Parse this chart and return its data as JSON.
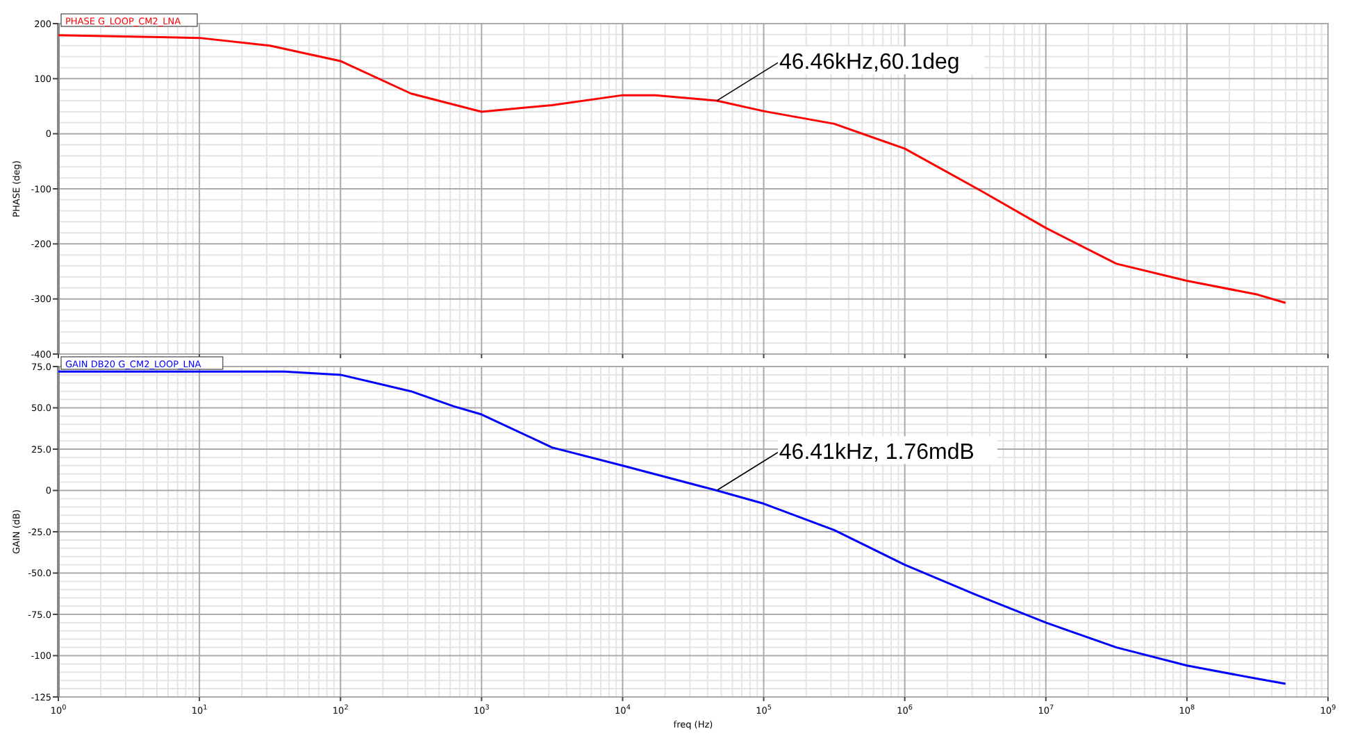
{
  "chart_data": [
    {
      "type": "line",
      "ylabel": "PHASE (deg)",
      "log": "x",
      "grid": true,
      "legend": "top left",
      "tick_labels": "y",
      "xlim": [
        1,
        1000000000
      ],
      "xticks": [
        {
          "value": 1,
          "label": null
        },
        {
          "value": 10,
          "label": null
        },
        {
          "value": 100,
          "label": null
        },
        {
          "value": 1000,
          "label": null
        },
        {
          "value": 10000,
          "label": null
        },
        {
          "value": 100000,
          "label": null
        },
        {
          "value": 1000000,
          "label": null
        },
        {
          "value": 10000000,
          "label": null
        },
        {
          "value": 100000000,
          "label": null
        },
        {
          "value": 1000000000,
          "label": null
        }
      ],
      "ylim": [
        -400,
        200
      ],
      "yticks": [
        -400,
        -300,
        -200,
        -100,
        0,
        100,
        200
      ],
      "series": [
        {
          "name": "PHASE G_LOOP_CM2_LNA",
          "color": "#ff0000",
          "x": [
            1,
            10,
            31.6,
            100,
            316,
            1000,
            3162,
            10000,
            17000,
            46460,
            100000,
            316228,
            1000000,
            3550000,
            10000000,
            31600000,
            100000000,
            316000000,
            500000000
          ],
          "values": [
            179,
            174,
            160,
            132,
            73,
            40,
            52,
            70,
            70,
            60,
            41,
            18,
            -27,
            -105,
            -171,
            -236,
            -267,
            -292,
            -307
          ]
        }
      ],
      "annotations": [
        {
          "text": "46.46kHz,60.1deg",
          "x": 46460,
          "y": 60
        }
      ]
    },
    {
      "type": "line",
      "xlabel": "freq (Hz)",
      "ylabel": "GAIN (dB)",
      "log": "x",
      "grid": true,
      "legend": "top left",
      "xlim": [
        1,
        1000000000
      ],
      "xticks": [
        {
          "value": 1,
          "label": "10$^{0}$"
        },
        {
          "value": 10,
          "label": "10$^{1}$"
        },
        {
          "value": 100,
          "label": "10$^{2}$"
        },
        {
          "value": 1000,
          "label": "10$^{3}$"
        },
        {
          "value": 10000,
          "label": "10$^{4}$"
        },
        {
          "value": 100000,
          "label": "10$^{5}$"
        },
        {
          "value": 1000000,
          "label": "10$^{6}$"
        },
        {
          "value": 10000000,
          "label": "10$^{7}$"
        },
        {
          "value": 100000000,
          "label": "10$^{8}$"
        },
        {
          "value": 1000000000,
          "label": "10$^{9}$"
        }
      ],
      "ylim": [
        -125,
        75
      ],
      "yticks": [
        {
          "value": -125,
          "label": "-125"
        },
        {
          "value": -100,
          "label": "-100"
        },
        {
          "value": -75,
          "label": "-75.0"
        },
        {
          "value": -50,
          "label": "-50.0"
        },
        {
          "value": -25,
          "label": "-25.0"
        },
        {
          "value": 0,
          "label": "0"
        },
        {
          "value": 25,
          "label": "25.0"
        },
        {
          "value": 50,
          "label": "50.0"
        },
        {
          "value": 75,
          "label": "75.0"
        }
      ],
      "series": [
        {
          "name": "GAIN DB20 G_CM2_LOOP_LNA",
          "color": "#0000ff",
          "x": [
            1,
            10,
            40,
            100,
            316,
            631,
            1000,
            3162,
            10000,
            46410,
            100000,
            316228,
            1000000,
            3162000,
            10000000,
            31620000,
            100000000,
            316000000,
            500000000
          ],
          "values": [
            72,
            72,
            72,
            70,
            60,
            51,
            46,
            26,
            15,
            0,
            -8,
            -24,
            -45,
            -63,
            -80,
            -95,
            -106,
            -114,
            -117
          ]
        }
      ],
      "annotations": [
        {
          "text": "46.41kHz, 1.76mdB",
          "x": 46410,
          "y": 0
        }
      ]
    }
  ]
}
